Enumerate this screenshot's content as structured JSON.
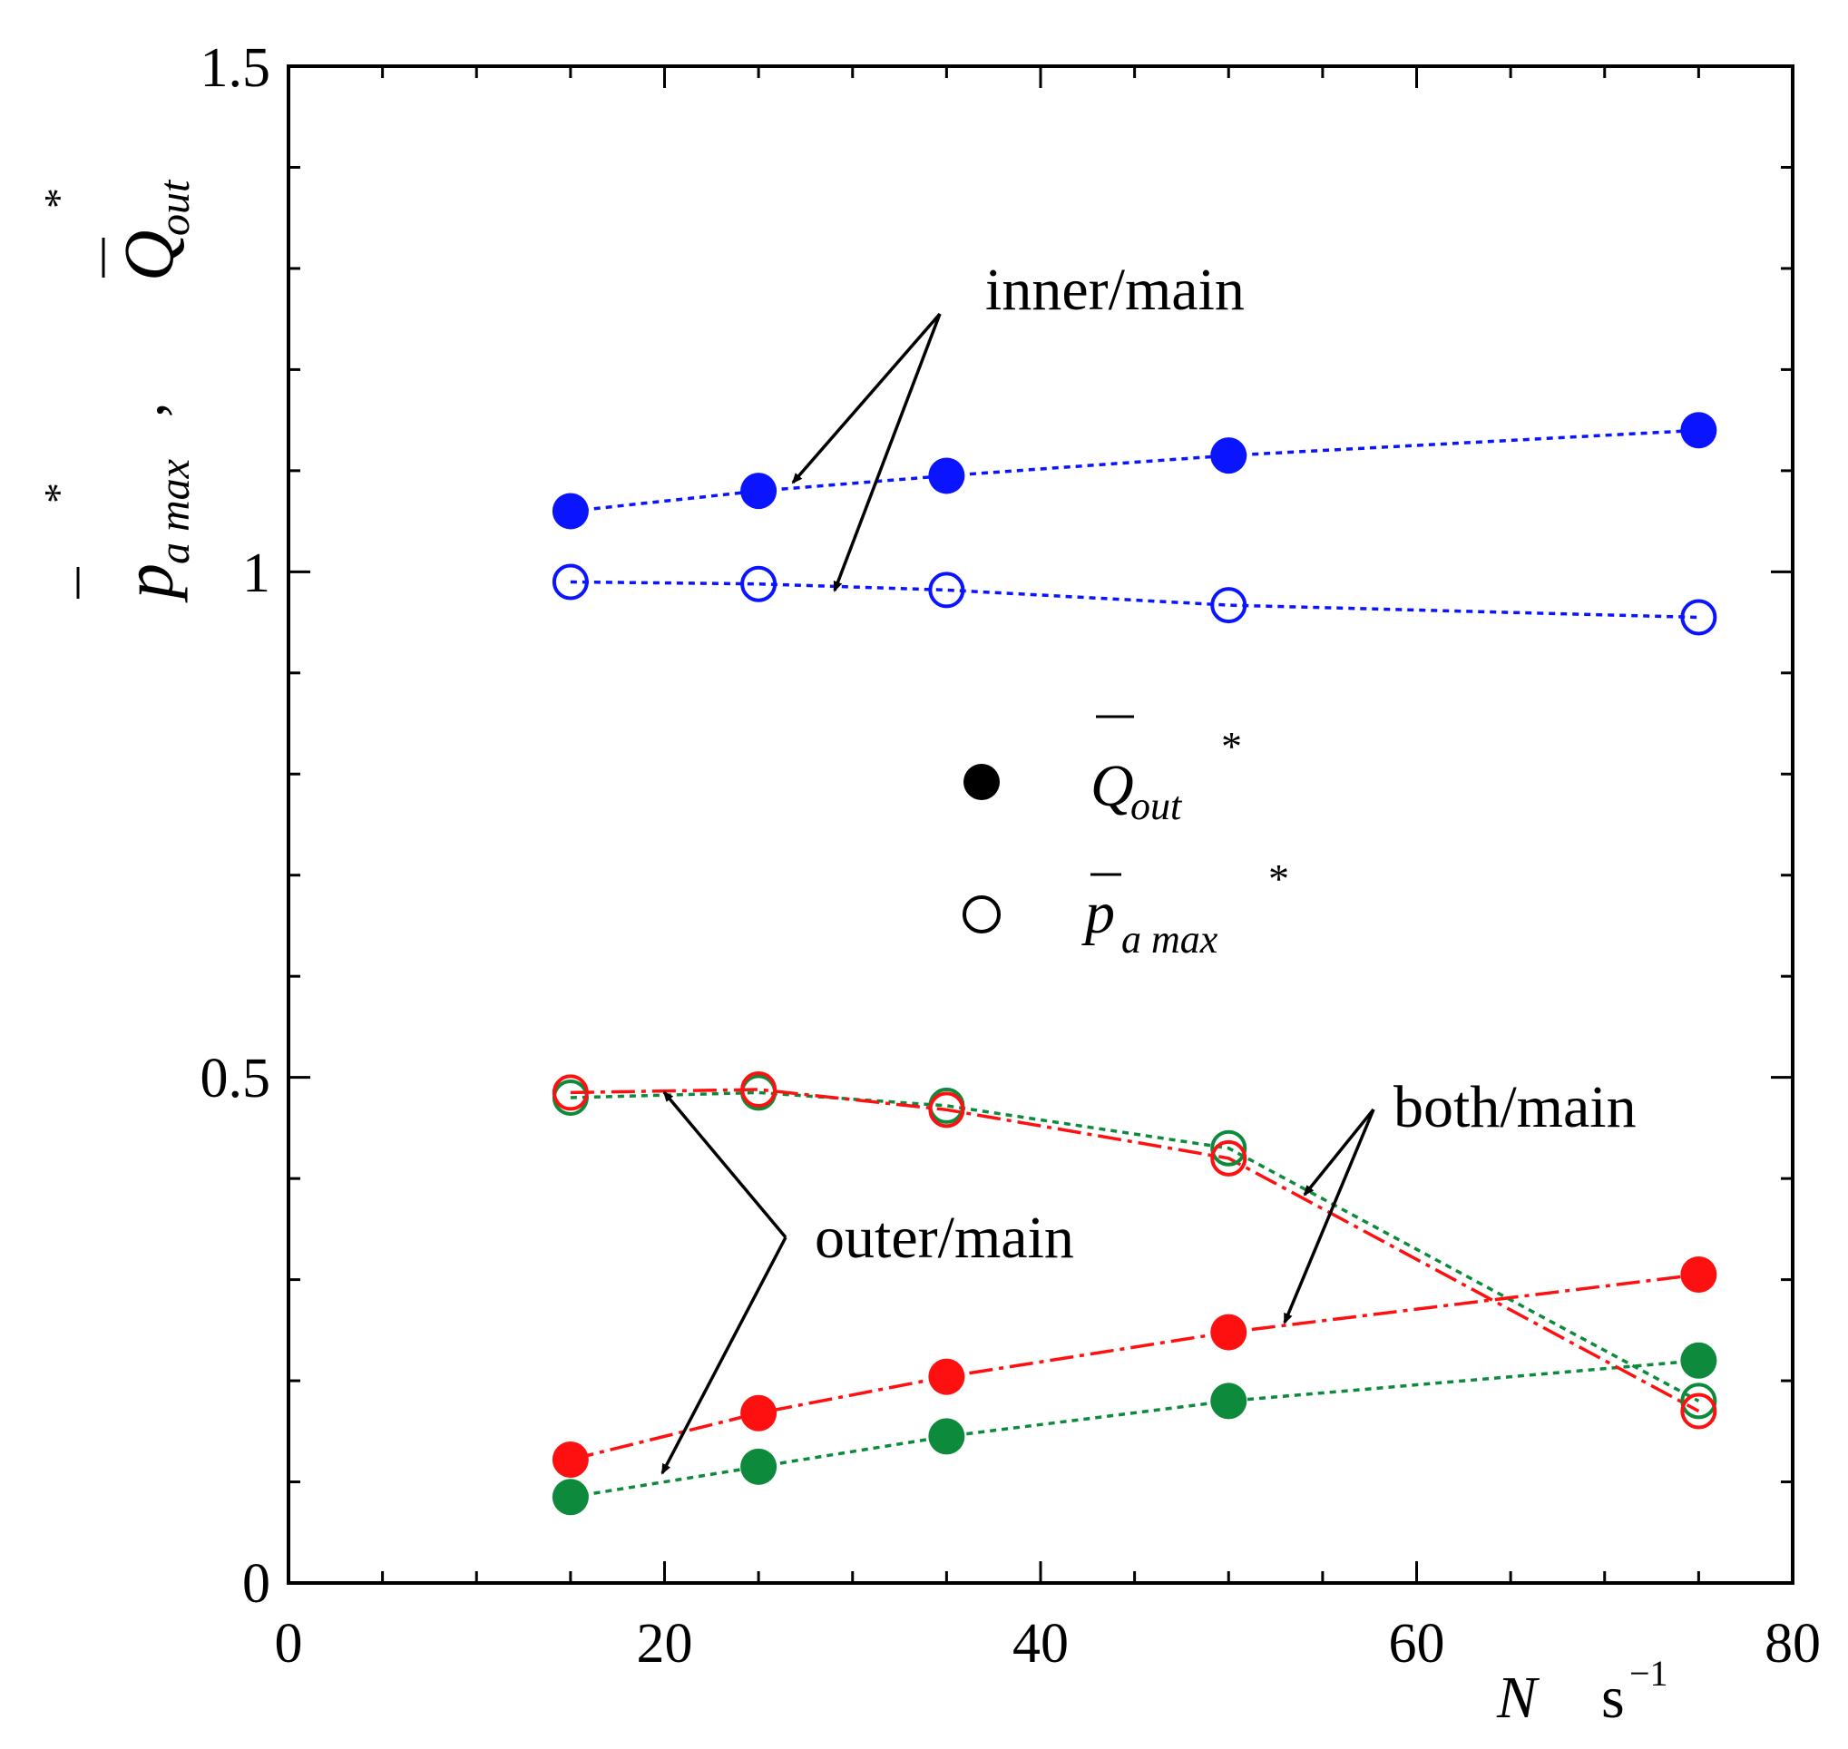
{
  "chart_data": {
    "type": "scatter",
    "xlim": [
      0,
      80
    ],
    "ylim": [
      0,
      1.5
    ],
    "x_ticks": [
      "0",
      "20",
      "40",
      "60",
      "80"
    ],
    "y_ticks": [
      "0",
      "0.5",
      "1",
      "1.5"
    ],
    "xlabel": {
      "var": "N",
      "unit": "s",
      "exp": "−1"
    },
    "ylabel": {
      "p": "p",
      "p_sub": "a max",
      "star": "*",
      "comma": ",",
      "q": "Q",
      "q_sub": "out"
    },
    "legend": {
      "position": "center",
      "filled": {
        "symbol": "Q",
        "sub": "out",
        "star": "*"
      },
      "open": {
        "symbol": "p",
        "sub": "a max",
        "star": "*"
      }
    },
    "annotations": [
      "inner/main",
      "outer/main",
      "both/main"
    ],
    "series": [
      {
        "name": "inner/main Q_out*",
        "marker": "filled",
        "color": "#0a14ff",
        "line": "dotted",
        "x": [
          15,
          25,
          35,
          50,
          75
        ],
        "y": [
          1.06,
          1.08,
          1.095,
          1.115,
          1.14
        ]
      },
      {
        "name": "inner/main p_a max*",
        "marker": "open",
        "color": "#0a14ff",
        "line": "dotted",
        "x": [
          15,
          25,
          35,
          50,
          75
        ],
        "y": [
          0.99,
          0.988,
          0.982,
          0.967,
          0.955
        ]
      },
      {
        "name": "outer/main Q_out*",
        "marker": "filled",
        "color": "#0e8a3c",
        "line": "dotted",
        "x": [
          15,
          25,
          35,
          50,
          75
        ],
        "y": [
          0.085,
          0.115,
          0.145,
          0.18,
          0.22
        ]
      },
      {
        "name": "outer/main p_a max*",
        "marker": "open",
        "color": "#0e8a3c",
        "line": "dotted",
        "x": [
          15,
          25,
          35,
          50,
          75
        ],
        "y": [
          0.48,
          0.485,
          0.472,
          0.43,
          0.18
        ]
      },
      {
        "name": "both/main Q_out*",
        "marker": "filled",
        "color": "#ff1010",
        "line": "dashdot",
        "x": [
          15,
          25,
          35,
          50,
          75
        ],
        "y": [
          0.122,
          0.168,
          0.204,
          0.248,
          0.305
        ]
      },
      {
        "name": "both/main p_a max*",
        "marker": "open",
        "color": "#ff1010",
        "line": "dashdot",
        "x": [
          15,
          25,
          35,
          50,
          75
        ],
        "y": [
          0.485,
          0.488,
          0.468,
          0.42,
          0.17
        ]
      }
    ]
  }
}
